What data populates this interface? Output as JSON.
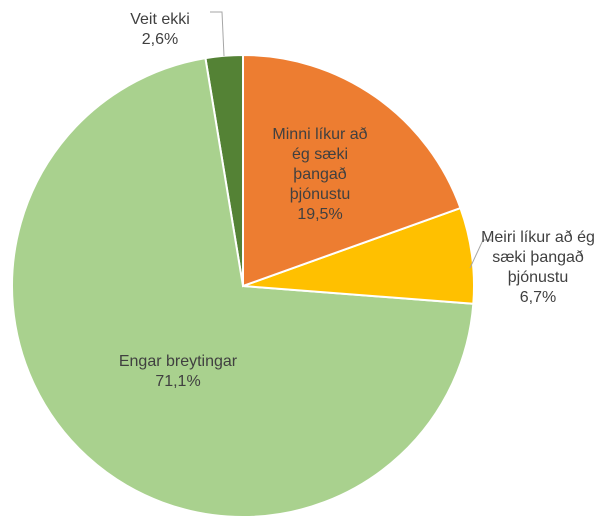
{
  "chart_data": {
    "type": "pie",
    "categories": [
      "Minni líkur að ég sæki þangað þjónustu",
      "Meiri líkur að ég sæki þangað þjónustu",
      "Engar breytingar",
      "Veit ekki"
    ],
    "values": [
      19.5,
      6.7,
      71.1,
      2.6
    ],
    "value_labels": [
      "19,5%",
      "6,7%",
      "71,1%",
      "2,6%"
    ],
    "colors": [
      "#ED7D31",
      "#FFC000",
      "#A9D18E",
      "#548235"
    ]
  }
}
